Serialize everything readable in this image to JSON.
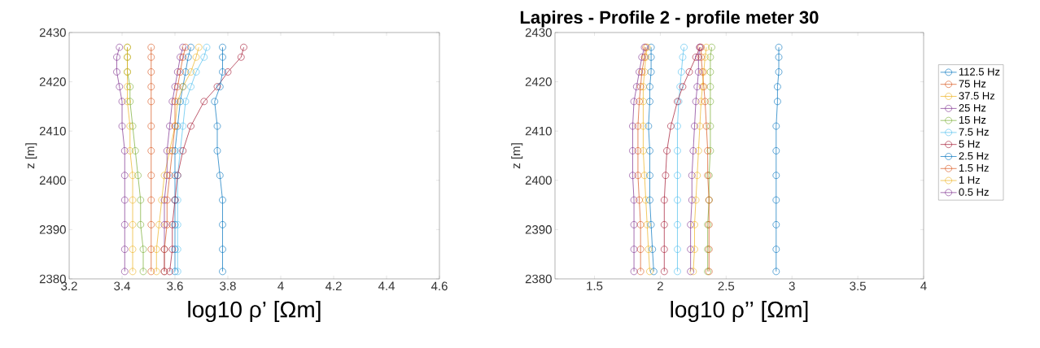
{
  "chart_data": [
    {
      "type": "line",
      "xlabel": "log10 ρ’ [Ωm]",
      "ylabel": "z [m]",
      "xlim": [
        3.2,
        4.6
      ],
      "ylim": [
        2380,
        2430
      ],
      "xticks": [
        3.2,
        3.4,
        3.6,
        3.8,
        4,
        4.2,
        4.4,
        4.6
      ],
      "yticks": [
        2380,
        2390,
        2400,
        2410,
        2420,
        2430
      ],
      "marker": "circle",
      "line_style": "solid",
      "series": [
        {
          "color": "#0072bd",
          "x": [
            3.6,
            3.6,
            3.6,
            3.6,
            3.6,
            3.6,
            3.61,
            3.62,
            3.63,
            3.64,
            3.65,
            3.66
          ],
          "values": [
            2381.5,
            2386,
            2391,
            2396,
            2401,
            2406,
            2411,
            2416,
            2419,
            2422,
            2425,
            2427
          ]
        },
        {
          "color": "#d95319",
          "x": [
            3.51,
            3.51,
            3.51,
            3.51,
            3.51,
            3.51,
            3.51,
            3.51,
            3.51,
            3.51,
            3.51,
            3.51
          ],
          "values": [
            2381.5,
            2386,
            2391,
            2396,
            2401,
            2406,
            2411,
            2416,
            2419,
            2422,
            2425,
            2427
          ]
        },
        {
          "color": "#edb120",
          "x": [
            3.53,
            3.53,
            3.54,
            3.55,
            3.56,
            3.58,
            3.6,
            3.61,
            3.63,
            3.66,
            3.68,
            3.69
          ],
          "values": [
            2381.5,
            2386,
            2391,
            2396,
            2401,
            2406,
            2411,
            2416,
            2419,
            2422,
            2425,
            2427
          ]
        },
        {
          "color": "#7e2f8e",
          "x": [
            3.56,
            3.56,
            3.56,
            3.56,
            3.57,
            3.57,
            3.58,
            3.59,
            3.6,
            3.61,
            3.62,
            3.63
          ],
          "values": [
            2381.5,
            2386,
            2391,
            2396,
            2401,
            2406,
            2411,
            2416,
            2419,
            2422,
            2425,
            2427
          ]
        },
        {
          "color": "#77ac30",
          "x": [
            3.48,
            3.48,
            3.47,
            3.47,
            3.46,
            3.45,
            3.44,
            3.43,
            3.43,
            3.42,
            3.42,
            3.42
          ],
          "values": [
            2381.5,
            2386,
            2391,
            2396,
            2401,
            2406,
            2411,
            2416,
            2419,
            2422,
            2425,
            2427
          ]
        },
        {
          "color": "#4dbeee",
          "x": [
            3.61,
            3.61,
            3.61,
            3.61,
            3.61,
            3.62,
            3.63,
            3.64,
            3.66,
            3.68,
            3.71,
            3.72
          ],
          "values": [
            2381.5,
            2386,
            2391,
            2396,
            2401,
            2406,
            2411,
            2416,
            2419,
            2422,
            2425,
            2427
          ]
        },
        {
          "color": "#a2142f",
          "x": [
            3.58,
            3.59,
            3.59,
            3.6,
            3.61,
            3.63,
            3.66,
            3.71,
            3.76,
            3.8,
            3.85,
            3.86
          ],
          "values": [
            2381.5,
            2386,
            2391,
            2396,
            2401,
            2406,
            2411,
            2416,
            2419,
            2422,
            2425,
            2427
          ]
        },
        {
          "color": "#0072bd",
          "x": [
            3.78,
            3.78,
            3.78,
            3.78,
            3.77,
            3.76,
            3.76,
            3.75,
            3.77,
            3.78,
            3.78,
            3.78
          ],
          "values": [
            2381.5,
            2386,
            2391,
            2396,
            2401,
            2406,
            2411,
            2416,
            2419,
            2422,
            2425,
            2427
          ]
        },
        {
          "color": "#d95319",
          "x": [
            3.56,
            3.56,
            3.57,
            3.57,
            3.58,
            3.59,
            3.6,
            3.6,
            3.61,
            3.62,
            3.63,
            3.64
          ],
          "values": [
            2381.5,
            2386,
            2391,
            2396,
            2401,
            2406,
            2411,
            2416,
            2419,
            2422,
            2425,
            2427
          ]
        },
        {
          "color": "#edb120",
          "x": [
            3.44,
            3.44,
            3.44,
            3.44,
            3.44,
            3.43,
            3.43,
            3.42,
            3.42,
            3.42,
            3.42,
            3.42
          ],
          "values": [
            2381.5,
            2386,
            2391,
            2396,
            2401,
            2406,
            2411,
            2416,
            2419,
            2422,
            2425,
            2427
          ]
        },
        {
          "color": "#7e2f8e",
          "x": [
            3.41,
            3.41,
            3.41,
            3.41,
            3.41,
            3.41,
            3.4,
            3.4,
            3.39,
            3.38,
            3.38,
            3.39
          ],
          "values": [
            2381.5,
            2386,
            2391,
            2396,
            2401,
            2406,
            2411,
            2416,
            2419,
            2422,
            2425,
            2427
          ]
        }
      ]
    },
    {
      "type": "line",
      "title": "Lapires - Profile 2 - profile meter 30",
      "xlabel": "log10 ρ’’ [Ωm]",
      "ylabel": "z [m]",
      "xlim": [
        1.2,
        4
      ],
      "ylim": [
        2380,
        2430
      ],
      "xticks": [
        1.5,
        2,
        2.5,
        3,
        3.5,
        4
      ],
      "yticks": [
        2380,
        2390,
        2400,
        2410,
        2420,
        2430
      ],
      "marker": "circle",
      "line_style": "solid",
      "legend": "right",
      "series": [
        {
          "name": "112.5 Hz",
          "color": "#0072bd",
          "x": [
            1.95,
            1.94,
            1.93,
            1.92,
            1.92,
            1.92,
            1.91,
            1.92,
            1.92,
            1.93,
            1.93,
            1.93
          ],
          "values": [
            2381.5,
            2386,
            2391,
            2396,
            2401,
            2406,
            2411,
            2416,
            2419,
            2422,
            2425,
            2427
          ]
        },
        {
          "name": "75 Hz",
          "color": "#d95319",
          "x": [
            1.85,
            1.85,
            1.85,
            1.84,
            1.83,
            1.83,
            1.83,
            1.84,
            1.85,
            1.86,
            1.88,
            1.89
          ],
          "values": [
            2381.5,
            2386,
            2391,
            2396,
            2401,
            2406,
            2411,
            2416,
            2419,
            2422,
            2425,
            2427
          ]
        },
        {
          "name": "37.5 Hz",
          "color": "#edb120",
          "x": [
            1.92,
            1.91,
            1.9,
            1.89,
            1.88,
            1.87,
            1.87,
            1.87,
            1.87,
            1.88,
            1.89,
            1.9
          ],
          "values": [
            2381.5,
            2386,
            2391,
            2396,
            2401,
            2406,
            2411,
            2416,
            2419,
            2422,
            2425,
            2427
          ]
        },
        {
          "name": "25 Hz",
          "color": "#7e2f8e",
          "x": [
            1.8,
            1.8,
            1.8,
            1.8,
            1.79,
            1.79,
            1.79,
            1.8,
            1.82,
            1.84,
            1.86,
            1.88
          ],
          "values": [
            2381.5,
            2386,
            2391,
            2396,
            2401,
            2406,
            2411,
            2416,
            2419,
            2422,
            2425,
            2427
          ]
        },
        {
          "name": "15 Hz",
          "color": "#77ac30",
          "x": [
            2.36,
            2.36,
            2.36,
            2.37,
            2.37,
            2.38,
            2.38,
            2.38,
            2.38,
            2.38,
            2.38,
            2.39
          ],
          "values": [
            2381.5,
            2386,
            2391,
            2396,
            2401,
            2406,
            2411,
            2416,
            2419,
            2422,
            2425,
            2427
          ]
        },
        {
          "name": "7.5 Hz",
          "color": "#4dbeee",
          "x": [
            2.13,
            2.13,
            2.13,
            2.13,
            2.13,
            2.13,
            2.13,
            2.14,
            2.15,
            2.16,
            2.17,
            2.18
          ],
          "values": [
            2381.5,
            2386,
            2391,
            2396,
            2401,
            2406,
            2411,
            2416,
            2419,
            2422,
            2425,
            2427
          ]
        },
        {
          "name": "5 Hz",
          "color": "#a2142f",
          "x": [
            2.03,
            2.03,
            2.03,
            2.03,
            2.04,
            2.05,
            2.08,
            2.13,
            2.17,
            2.22,
            2.27,
            2.3
          ],
          "values": [
            2381.5,
            2386,
            2391,
            2396,
            2401,
            2406,
            2411,
            2416,
            2419,
            2422,
            2425,
            2427
          ]
        },
        {
          "name": "2.5 Hz",
          "color": "#0072bd",
          "x": [
            2.88,
            2.88,
            2.88,
            2.88,
            2.88,
            2.88,
            2.88,
            2.89,
            2.89,
            2.9,
            2.9,
            2.9
          ],
          "values": [
            2381.5,
            2386,
            2391,
            2396,
            2401,
            2406,
            2411,
            2416,
            2419,
            2422,
            2425,
            2427
          ]
        },
        {
          "name": "1.5 Hz",
          "color": "#d95319",
          "x": [
            2.37,
            2.37,
            2.37,
            2.37,
            2.36,
            2.36,
            2.35,
            2.34,
            2.33,
            2.32,
            2.31,
            2.31
          ],
          "values": [
            2381.5,
            2386,
            2391,
            2396,
            2401,
            2406,
            2411,
            2416,
            2419,
            2422,
            2425,
            2427
          ]
        },
        {
          "name": "1 Hz",
          "color": "#edb120",
          "x": [
            2.25,
            2.26,
            2.26,
            2.27,
            2.28,
            2.29,
            2.3,
            2.31,
            2.32,
            2.33,
            2.34,
            2.35
          ],
          "values": [
            2381.5,
            2386,
            2391,
            2396,
            2401,
            2406,
            2411,
            2416,
            2419,
            2422,
            2425,
            2427
          ]
        },
        {
          "name": "0.5 Hz",
          "color": "#7e2f8e",
          "x": [
            2.23,
            2.23,
            2.23,
            2.24,
            2.24,
            2.25,
            2.26,
            2.27,
            2.28,
            2.29,
            2.29,
            2.3
          ],
          "values": [
            2381.5,
            2386,
            2391,
            2396,
            2401,
            2406,
            2411,
            2416,
            2419,
            2422,
            2425,
            2427
          ]
        }
      ]
    }
  ]
}
